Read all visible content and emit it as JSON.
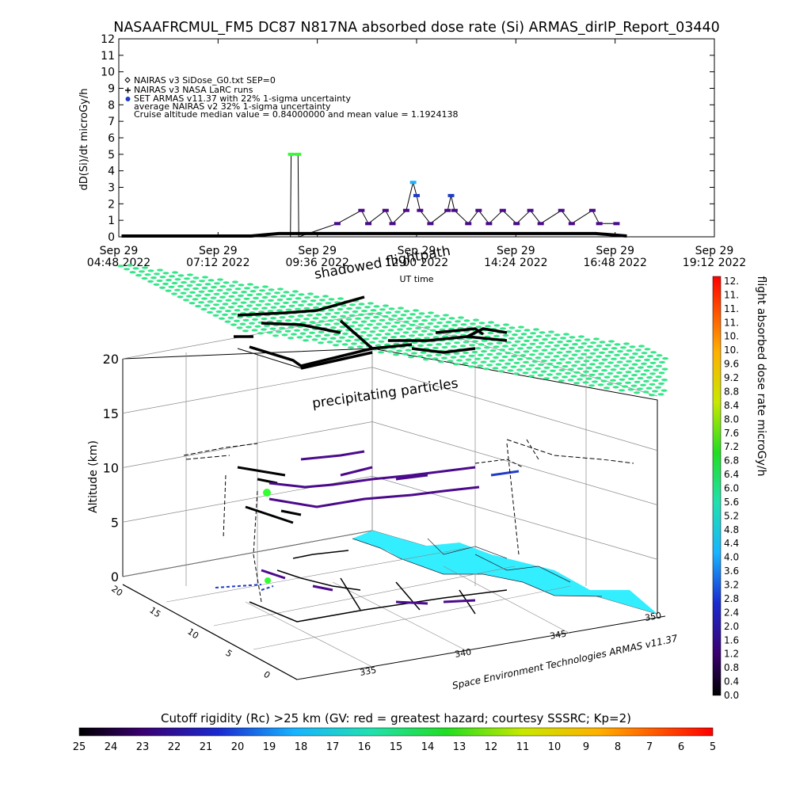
{
  "title": "NASAAFRCMUL_FM5 DC87 N817NA absorbed dose rate (Si) ARMAS_dirIP_Report_03440",
  "chart_data": [
    {
      "type": "line",
      "ylabel": "dD(Si)/dt microGy/h",
      "xlabel": "UT time",
      "ylim": [
        0,
        12
      ],
      "y_ticks": [
        "0",
        "1",
        "2",
        "3",
        "4",
        "5",
        "6",
        "7",
        "8",
        "9",
        "10",
        "11",
        "12"
      ],
      "x_ticks": [
        {
          "day": "Sep 29",
          "time": "04:48",
          "year": "2022"
        },
        {
          "day": "Sep 29",
          "time": "07:12",
          "year": "2022"
        },
        {
          "day": "Sep 29",
          "time": "09:36",
          "year": "2022"
        },
        {
          "day": "Sep 29",
          "time": "12:00",
          "year": "2022"
        },
        {
          "day": "Sep 29",
          "time": "14:24",
          "year": "2022"
        },
        {
          "day": "Sep 29",
          "time": "16:48",
          "year": "2022"
        },
        {
          "day": "Sep 29",
          "time": "19:12",
          "year": "2022"
        }
      ],
      "legend": [
        {
          "symbol": "diamond",
          "text": "NAIRAS v3 SiDose_G0.txt SEP=0"
        },
        {
          "symbol": "plus",
          "text": "NAIRAS v3 NASA LaRC runs"
        },
        {
          "symbol": "dot",
          "color": "#1e3cc8",
          "text": "SET ARMAS v11.37 with 22% 1-sigma uncertainty"
        },
        {
          "symbol": "none",
          "text": "average NAIRAS v2 32% 1-sigma uncertainty"
        },
        {
          "symbol": "none",
          "text": "Cruise altitude median value = 0.84000000 and mean value = 1.1924138"
        }
      ],
      "legend_position": "top-left",
      "series": [
        {
          "name": "SET ARMAS v11.37 with 22% 1-sigma uncertainty",
          "points": [
            [
              "08:57",
              0
            ],
            [
              "08:58",
              5.0
            ],
            [
              "09:08",
              5.0
            ],
            [
              "09:09",
              0
            ],
            [
              "10:05",
              0.8
            ],
            [
              "10:40",
              1.6
            ],
            [
              "10:50",
              0.8
            ],
            [
              "11:15",
              1.6
            ],
            [
              "11:25",
              0.8
            ],
            [
              "11:45",
              1.6
            ],
            [
              "11:55",
              3.3
            ],
            [
              "12:00",
              2.5
            ],
            [
              "12:05",
              1.6
            ],
            [
              "12:20",
              0.8
            ],
            [
              "12:45",
              1.6
            ],
            [
              "12:50",
              2.5
            ],
            [
              "12:55",
              1.6
            ],
            [
              "13:15",
              0.8
            ],
            [
              "13:30",
              1.6
            ],
            [
              "13:45",
              0.8
            ],
            [
              "14:05",
              1.6
            ],
            [
              "14:25",
              0.8
            ],
            [
              "14:45",
              1.6
            ],
            [
              "15:00",
              0.8
            ],
            [
              "15:30",
              1.6
            ],
            [
              "15:45",
              0.8
            ],
            [
              "16:15",
              1.6
            ],
            [
              "16:25",
              0.8
            ],
            [
              "16:50",
              0.8
            ]
          ]
        }
      ]
    },
    {
      "type": "3d-trajectory",
      "zlabel": "Altitude (km)",
      "z_ticks": [
        "0",
        "5",
        "10",
        "15",
        "20"
      ],
      "y_ticks": [
        "20",
        "15",
        "10",
        "5",
        "0"
      ],
      "x_ticks": [
        "335",
        "340",
        "345",
        "350"
      ],
      "annotations": [
        "shadowed flightpath",
        "precipitating particles"
      ],
      "credit": "Space Environment Technologies ARMAS v11.37"
    },
    {
      "type": "colorbar",
      "orientation": "vertical",
      "label": "flight absorbed dose rate microGy/h",
      "ticks": [
        "0.0",
        "0.4",
        "0.8",
        "1.2",
        "1.6",
        "2.0",
        "2.4",
        "2.8",
        "3.2",
        "3.6",
        "4.0",
        "4.4",
        "4.8",
        "5.2",
        "5.6",
        "6.0",
        "6.4",
        "6.8",
        "7.2",
        "7.6",
        "8.0",
        "8.4",
        "8.8",
        "9.2",
        "9.6",
        "10.",
        "10.",
        "11.",
        "11.",
        "11.",
        "12."
      ]
    },
    {
      "type": "colorbar",
      "orientation": "horizontal",
      "label": "Cutoff rigidity (Rc) >25 km (GV: red = greatest hazard; courtesy SSSRC; Kp=2)",
      "ticks": [
        "25",
        "24",
        "23",
        "22",
        "21",
        "20",
        "19",
        "18",
        "17",
        "16",
        "15",
        "14",
        "13",
        "12",
        "11",
        "10",
        "9",
        "8",
        "7",
        "6",
        "5"
      ]
    }
  ],
  "colors": {
    "armas_points": "#1e3cc8",
    "track": "#4b0a8c",
    "grid_particles": "#33e688",
    "land": "#33eeff",
    "peak": "#33ff33"
  }
}
